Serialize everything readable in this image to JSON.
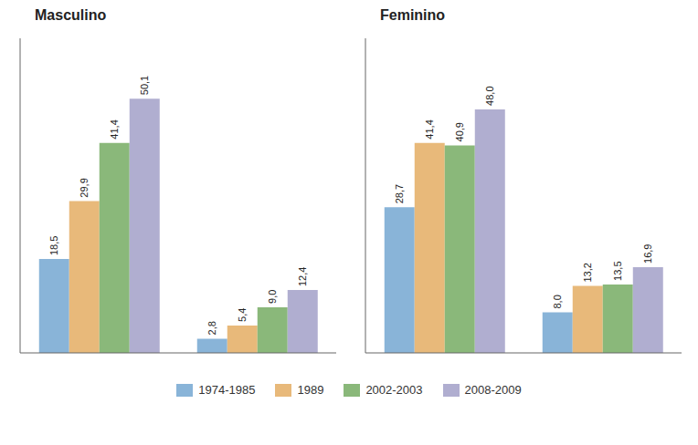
{
  "chart_data": [
    {
      "type": "bar",
      "title": "Masculino",
      "categories": [
        null,
        null
      ],
      "series": [
        {
          "name": "1974-1985",
          "color": "#89b4d8",
          "values": [
            18.5,
            2.8
          ],
          "value_labels": [
            "18,5",
            "2,8"
          ]
        },
        {
          "name": "1989",
          "color": "#e8b97a",
          "values": [
            29.9,
            5.4
          ],
          "value_labels": [
            "29,9",
            "5,4"
          ]
        },
        {
          "name": "2002-2003",
          "color": "#8ab87a",
          "values": [
            41.4,
            9.0
          ],
          "value_labels": [
            "41,4",
            "9,0"
          ]
        },
        {
          "name": "2008-2009",
          "color": "#b0aed0",
          "values": [
            50.1,
            12.4
          ],
          "value_labels": [
            "50,1",
            "12,4"
          ]
        }
      ],
      "ylim": [
        0,
        62
      ],
      "grid": false,
      "tick_labels": false,
      "data_labels": true,
      "legend": "bottom"
    },
    {
      "type": "bar",
      "title": "Feminino",
      "categories": [
        null,
        null
      ],
      "series": [
        {
          "name": "1974-1985",
          "color": "#89b4d8",
          "values": [
            28.7,
            8.0
          ],
          "value_labels": [
            "28,7",
            "8,0"
          ]
        },
        {
          "name": "1989",
          "color": "#e8b97a",
          "values": [
            41.4,
            13.2
          ],
          "value_labels": [
            "41,4",
            "13,2"
          ]
        },
        {
          "name": "2002-2003",
          "color": "#8ab87a",
          "values": [
            40.9,
            13.5
          ],
          "value_labels": [
            "40,9",
            "13,5"
          ]
        },
        {
          "name": "2008-2009",
          "color": "#b0aed0",
          "values": [
            48.0,
            16.9
          ],
          "value_labels": [
            "48,0",
            "16,9"
          ]
        }
      ],
      "ylim": [
        0,
        62
      ],
      "grid": false,
      "tick_labels": false,
      "data_labels": true,
      "legend": "bottom"
    }
  ]
}
